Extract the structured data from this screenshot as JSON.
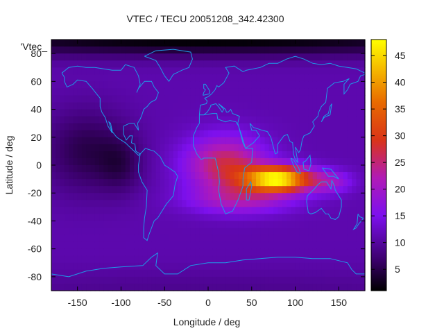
{
  "chart_data": {
    "type": "heatmap",
    "title": "VTEC / TECU 20051208_342.42300",
    "xlabel": "Longitude / deg",
    "ylabel": "Latitude / deg",
    "legend_label": "'Vtec_",
    "xlim": [
      -180,
      180
    ],
    "ylim": [
      -90,
      90
    ],
    "x_ticks": [
      {
        "value": -150,
        "label": "-150"
      },
      {
        "value": -100,
        "label": "-100"
      },
      {
        "value": -50,
        "label": "-50"
      },
      {
        "value": 0,
        "label": "0"
      },
      {
        "value": 50,
        "label": "50"
      },
      {
        "value": 100,
        "label": "100"
      },
      {
        "value": 150,
        "label": "150"
      }
    ],
    "y_ticks": [
      {
        "value": 80,
        "label": "80"
      },
      {
        "value": 60,
        "label": "60"
      },
      {
        "value": 40,
        "label": "40"
      },
      {
        "value": 20,
        "label": "20"
      },
      {
        "value": 0,
        "label": "0"
      },
      {
        "value": -20,
        "label": "-20"
      },
      {
        "value": -40,
        "label": "-40"
      },
      {
        "value": -60,
        "label": "-60"
      },
      {
        "value": -80,
        "label": "-80"
      }
    ],
    "colorbar": {
      "min": 1,
      "max": 48,
      "ticks": [
        {
          "value": 5,
          "label": "5"
        },
        {
          "value": 10,
          "label": "10"
        },
        {
          "value": 15,
          "label": "15"
        },
        {
          "value": 20,
          "label": "20"
        },
        {
          "value": 25,
          "label": "25"
        },
        {
          "value": 30,
          "label": "30"
        },
        {
          "value": 35,
          "label": "35"
        },
        {
          "value": 40,
          "label": "40"
        },
        {
          "value": 45,
          "label": "45"
        }
      ]
    },
    "field_model": {
      "background": 11,
      "features": [
        {
          "name": "equatorial-anomaly",
          "lon": 80,
          "lat": -10,
          "amp": 36,
          "sigma_lon": 38,
          "sigma_lat": 9
        },
        {
          "name": "africa-day-side",
          "lon": 20,
          "lat": 0,
          "amp": 16,
          "sigma_lon": 45,
          "sigma_lat": 20
        },
        {
          "name": "southern-crest",
          "lon": 40,
          "lat": -25,
          "amp": 9,
          "sigma_lon": 60,
          "sigma_lat": 10
        },
        {
          "name": "pacific-tail",
          "lon": 140,
          "lat": -12,
          "amp": 8,
          "sigma_lon": 25,
          "sigma_lat": 8
        },
        {
          "name": "pacific-night-low",
          "lon": -140,
          "lat": 10,
          "amp": -6,
          "sigma_lon": 50,
          "sigma_lat": 30
        },
        {
          "name": "americas-night-low",
          "lon": -100,
          "lat": 0,
          "amp": -4,
          "sigma_lon": 25,
          "sigma_lat": 20
        },
        {
          "name": "arctic-low",
          "lon": 0,
          "lat": 90,
          "amp": -10,
          "sigma_lon": 400,
          "sigma_lat": 12
        },
        {
          "name": "antarctic-floor",
          "lon": 0,
          "lat": -90,
          "amp": -2,
          "sigma_lon": 400,
          "sigma_lat": 15
        }
      ]
    },
    "coastlines": [
      [
        [
          -168,
          66
        ],
        [
          -160,
          70
        ],
        [
          -150,
          71
        ],
        [
          -140,
          70
        ],
        [
          -130,
          70
        ],
        [
          -120,
          69
        ],
        [
          -110,
          68
        ],
        [
          -100,
          68
        ],
        [
          -95,
          72
        ],
        [
          -85,
          70
        ],
        [
          -80,
          64
        ],
        [
          -78,
          58
        ],
        [
          -82,
          52
        ],
        [
          -80,
          55
        ],
        [
          -73,
          60
        ],
        [
          -65,
          60
        ],
        [
          -62,
          56
        ],
        [
          -57,
          52
        ],
        [
          -60,
          47
        ],
        [
          -66,
          45
        ],
        [
          -70,
          42
        ],
        [
          -74,
          40
        ],
        [
          -76,
          36
        ],
        [
          -78,
          33
        ],
        [
          -81,
          30
        ],
        [
          -80,
          25
        ],
        [
          -82,
          27
        ],
        [
          -85,
          30
        ],
        [
          -90,
          30
        ],
        [
          -97,
          28
        ],
        [
          -97,
          22
        ],
        [
          -94,
          18
        ],
        [
          -90,
          21
        ],
        [
          -87,
          21
        ],
        [
          -88,
          16
        ],
        [
          -84,
          15
        ],
        [
          -83,
          10
        ],
        [
          -78,
          8
        ],
        [
          -80,
          7
        ],
        [
          -85,
          10
        ],
        [
          -90,
          13
        ],
        [
          -95,
          16
        ],
        [
          -105,
          20
        ],
        [
          -110,
          24
        ],
        [
          -112,
          30
        ],
        [
          -114,
          31
        ],
        [
          -110,
          23
        ],
        [
          -115,
          28
        ],
        [
          -118,
          34
        ],
        [
          -122,
          38
        ],
        [
          -124,
          42
        ],
        [
          -124,
          48
        ],
        [
          -128,
          51
        ],
        [
          -133,
          55
        ],
        [
          -140,
          60
        ],
        [
          -150,
          61
        ],
        [
          -155,
          58
        ],
        [
          -162,
          56
        ],
        [
          -165,
          60
        ],
        [
          -165,
          63
        ],
        [
          -168,
          66
        ]
      ],
      [
        [
          -78,
          8
        ],
        [
          -72,
          12
        ],
        [
          -62,
          10
        ],
        [
          -55,
          6
        ],
        [
          -50,
          0
        ],
        [
          -45,
          -2
        ],
        [
          -38,
          -5
        ],
        [
          -35,
          -8
        ],
        [
          -38,
          -14
        ],
        [
          -40,
          -22
        ],
        [
          -48,
          -28
        ],
        [
          -55,
          -35
        ],
        [
          -58,
          -38
        ],
        [
          -62,
          -40
        ],
        [
          -65,
          -45
        ],
        [
          -68,
          -50
        ],
        [
          -70,
          -54
        ],
        [
          -74,
          -52
        ],
        [
          -74,
          -45
        ],
        [
          -73,
          -38
        ],
        [
          -71,
          -30
        ],
        [
          -70,
          -18
        ],
        [
          -76,
          -12
        ],
        [
          -80,
          -5
        ],
        [
          -80,
          0
        ],
        [
          -78,
          8
        ]
      ],
      [
        [
          -73,
          78
        ],
        [
          -60,
          82
        ],
        [
          -40,
          83
        ],
        [
          -20,
          81
        ],
        [
          -18,
          76
        ],
        [
          -22,
          70
        ],
        [
          -30,
          68
        ],
        [
          -40,
          65
        ],
        [
          -45,
          60
        ],
        [
          -50,
          64
        ],
        [
          -55,
          70
        ],
        [
          -60,
          75
        ],
        [
          -73,
          78
        ]
      ],
      [
        [
          -10,
          36
        ],
        [
          -5,
          36
        ],
        [
          5,
          37
        ],
        [
          10,
          37
        ],
        [
          11,
          33
        ],
        [
          20,
          31
        ],
        [
          25,
          32
        ],
        [
          32,
          31
        ],
        [
          35,
          28
        ],
        [
          43,
          12
        ],
        [
          51,
          12
        ],
        [
          50,
          2
        ],
        [
          42,
          -2
        ],
        [
          40,
          -10
        ],
        [
          40,
          -15
        ],
        [
          35,
          -24
        ],
        [
          32,
          -28
        ],
        [
          28,
          -33
        ],
        [
          20,
          -35
        ],
        [
          18,
          -32
        ],
        [
          15,
          -28
        ],
        [
          12,
          -18
        ],
        [
          13,
          -12
        ],
        [
          12,
          -5
        ],
        [
          9,
          3
        ],
        [
          8,
          5
        ],
        [
          0,
          5
        ],
        [
          -5,
          5
        ],
        [
          -8,
          4
        ],
        [
          -13,
          8
        ],
        [
          -17,
          14
        ],
        [
          -17,
          21
        ],
        [
          -13,
          27
        ],
        [
          -10,
          30
        ],
        [
          -10,
          36
        ]
      ],
      [
        [
          -10,
          36
        ],
        [
          -9,
          43
        ],
        [
          -2,
          44
        ],
        [
          -1,
          46
        ],
        [
          -4,
          48
        ],
        [
          0,
          49
        ],
        [
          4,
          51
        ],
        [
          8,
          54
        ],
        [
          10,
          57
        ],
        [
          12,
          56
        ],
        [
          18,
          59
        ],
        [
          24,
          66
        ],
        [
          20,
          70
        ],
        [
          30,
          71
        ],
        [
          40,
          67
        ],
        [
          44,
          68
        ],
        [
          60,
          70
        ],
        [
          70,
          73
        ],
        [
          80,
          73
        ],
        [
          90,
          76
        ],
        [
          100,
          78
        ],
        [
          110,
          76
        ],
        [
          120,
          73
        ],
        [
          130,
          72
        ],
        [
          140,
          73
        ],
        [
          150,
          71
        ],
        [
          160,
          70
        ],
        [
          170,
          69
        ],
        [
          180,
          66
        ]
      ],
      [
        [
          180,
          65
        ],
        [
          175,
          64
        ],
        [
          172,
          60
        ],
        [
          163,
          58
        ],
        [
          160,
          54
        ],
        [
          156,
          51
        ],
        [
          156,
          58
        ],
        [
          162,
          62
        ],
        [
          155,
          60
        ],
        [
          145,
          59
        ],
        [
          137,
          55
        ],
        [
          135,
          45
        ],
        [
          130,
          42
        ],
        [
          127,
          38
        ],
        [
          126,
          35
        ],
        [
          120,
          31
        ],
        [
          122,
          28
        ],
        [
          117,
          23
        ],
        [
          110,
          21
        ],
        [
          108,
          18
        ],
        [
          106,
          11
        ],
        [
          104,
          9
        ],
        [
          100,
          13
        ],
        [
          103,
          2
        ],
        [
          100,
          4
        ],
        [
          98,
          8
        ],
        [
          97,
          16
        ],
        [
          94,
          17
        ],
        [
          91,
          22
        ],
        [
          87,
          21
        ],
        [
          80,
          15
        ],
        [
          80,
          9
        ],
        [
          77,
          8
        ],
        [
          72,
          20
        ],
        [
          68,
          24
        ],
        [
          62,
          25
        ],
        [
          57,
          26
        ],
        [
          52,
          27
        ],
        [
          48,
          30
        ],
        [
          50,
          25
        ],
        [
          55,
          25
        ],
        [
          57,
          23
        ],
        [
          59,
          21
        ],
        [
          52,
          16
        ],
        [
          43,
          12
        ],
        [
          40,
          16
        ],
        [
          35,
          28
        ],
        [
          34,
          30
        ],
        [
          36,
          35
        ],
        [
          28,
          37
        ],
        [
          26,
          40
        ],
        [
          23,
          38
        ],
        [
          21,
          38
        ],
        [
          20,
          40
        ],
        [
          16,
          42
        ],
        [
          12,
          44
        ],
        [
          18,
          40
        ],
        [
          16,
          38
        ],
        [
          13,
          41
        ],
        [
          9,
          44
        ],
        [
          3,
          43
        ],
        [
          3,
          42
        ],
        [
          -1,
          38
        ],
        [
          -5,
          36
        ],
        [
          -10,
          36
        ]
      ],
      [
        [
          -6,
          50
        ],
        [
          1,
          51
        ],
        [
          2,
          53
        ],
        [
          0,
          55
        ],
        [
          -3,
          58
        ],
        [
          -5,
          58
        ],
        [
          -5,
          55
        ],
        [
          -3,
          54
        ],
        [
          -5,
          52
        ],
        [
          -6,
          50
        ]
      ],
      [
        [
          114,
          -22
        ],
        [
          113,
          -26
        ],
        [
          115,
          -34
        ],
        [
          118,
          -35
        ],
        [
          123,
          -34
        ],
        [
          130,
          -31
        ],
        [
          135,
          -35
        ],
        [
          138,
          -35
        ],
        [
          141,
          -38
        ],
        [
          146,
          -39
        ],
        [
          150,
          -37
        ],
        [
          153,
          -30
        ],
        [
          153,
          -25
        ],
        [
          150,
          -22
        ],
        [
          146,
          -18
        ],
        [
          145,
          -15
        ],
        [
          142,
          -11
        ],
        [
          141,
          -17
        ],
        [
          136,
          -12
        ],
        [
          130,
          -12
        ],
        [
          126,
          -14
        ],
        [
          122,
          -17
        ],
        [
          114,
          -22
        ]
      ],
      [
        [
          44,
          -25
        ],
        [
          47,
          -25
        ],
        [
          50,
          -15
        ],
        [
          49,
          -12
        ],
        [
          44,
          -17
        ],
        [
          44,
          -25
        ]
      ],
      [
        [
          95,
          5
        ],
        [
          98,
          4
        ],
        [
          104,
          -2
        ],
        [
          106,
          -6
        ],
        [
          102,
          -5
        ],
        [
          98,
          0
        ],
        [
          95,
          5
        ]
      ],
      [
        [
          109,
          2
        ],
        [
          110,
          -3
        ],
        [
          116,
          -4
        ],
        [
          118,
          1
        ],
        [
          117,
          7
        ],
        [
          112,
          3
        ],
        [
          109,
          2
        ]
      ],
      [
        [
          131,
          -2
        ],
        [
          141,
          -3
        ],
        [
          150,
          -10
        ],
        [
          144,
          -8
        ],
        [
          138,
          -8
        ],
        [
          131,
          -2
        ]
      ],
      [
        [
          130,
          31
        ],
        [
          133,
          34
        ],
        [
          136,
          35
        ],
        [
          140,
          36
        ],
        [
          141,
          40
        ],
        [
          142,
          44
        ],
        [
          140,
          42
        ],
        [
          138,
          37
        ],
        [
          133,
          35
        ],
        [
          130,
          31
        ]
      ],
      [
        [
          -180,
          -78
        ],
        [
          -160,
          -80
        ],
        [
          -140,
          -76
        ],
        [
          -120,
          -74
        ],
        [
          -100,
          -73
        ],
        [
          -75,
          -72
        ],
        [
          -65,
          -66
        ],
        [
          -58,
          -63
        ],
        [
          -60,
          -72
        ],
        [
          -50,
          -78
        ],
        [
          -35,
          -78
        ],
        [
          -20,
          -72
        ],
        [
          0,
          -70
        ],
        [
          20,
          -70
        ],
        [
          40,
          -68
        ],
        [
          60,
          -67
        ],
        [
          80,
          -66
        ],
        [
          100,
          -66
        ],
        [
          120,
          -67
        ],
        [
          140,
          -67
        ],
        [
          160,
          -70
        ],
        [
          165,
          -75
        ],
        [
          170,
          -78
        ],
        [
          180,
          -78
        ]
      ],
      [
        [
          172,
          -35
        ],
        [
          174,
          -37
        ],
        [
          178,
          -38
        ],
        [
          176,
          -40
        ],
        [
          173,
          -42
        ],
        [
          170,
          -45
        ],
        [
          167,
          -46
        ],
        [
          171,
          -42
        ],
        [
          172,
          -35
        ]
      ]
    ]
  }
}
